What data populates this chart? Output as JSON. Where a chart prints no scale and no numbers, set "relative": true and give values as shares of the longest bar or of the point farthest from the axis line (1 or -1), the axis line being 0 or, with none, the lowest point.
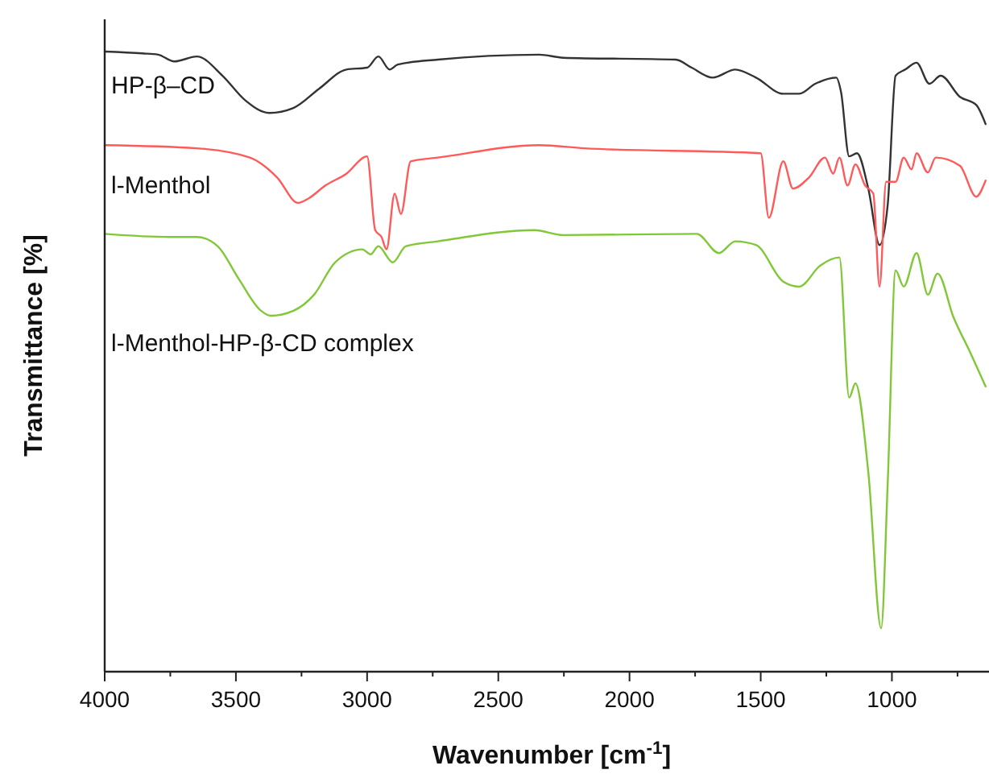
{
  "chart_data": {
    "type": "line",
    "xlabel": "Wavenumber [cm$^{-1}$]",
    "ylabel": "Transmittance [%]",
    "relative": true,
    "xlim": [
      4000,
      630
    ],
    "xticks": [
      4000,
      {
        "value": 3750,
        "label": null
      },
      3500,
      {
        "value": 3250,
        "label": null
      },
      3000,
      {
        "value": 2750,
        "label": null
      },
      2500,
      {
        "value": 2250,
        "label": null
      },
      2000,
      {
        "value": 1750,
        "label": null
      },
      1500,
      {
        "value": 1250,
        "label": null
      },
      1000,
      {
        "value": 750,
        "label": null
      }
    ],
    "series": [
      {
        "name": "HP-β–CD",
        "color": "#333333",
        "x": [
          4000,
          3857,
          3796,
          3735,
          3649,
          3551,
          3466,
          3373,
          3281,
          3183,
          3079,
          3000,
          2957,
          2914,
          2883,
          2730,
          2344,
          2253,
          1824,
          1763,
          1683,
          1597,
          1518,
          1414,
          1353,
          1292,
          1212,
          1194,
          1163,
          1133,
          1090,
          1047,
          1016,
          986,
          949,
          906,
          857,
          814,
          741,
          679,
          643
        ],
        "values": [
          1.0,
          0.997,
          0.995,
          0.984,
          0.992,
          0.961,
          0.922,
          0.901,
          0.909,
          0.94,
          0.971,
          0.974,
          0.992,
          0.971,
          0.979,
          0.987,
          0.995,
          0.99,
          0.987,
          0.974,
          0.958,
          0.971,
          0.958,
          0.932,
          0.932,
          0.948,
          0.958,
          0.935,
          0.831,
          0.836,
          0.779,
          0.688,
          0.753,
          0.961,
          0.971,
          0.982,
          0.948,
          0.961,
          0.927,
          0.914,
          0.883
        ]
      },
      {
        "name": "l-Menthol",
        "color": "#ff5a5a",
        "x": [
          4000,
          3649,
          3447,
          3343,
          3263,
          3220,
          3159,
          3079,
          3000,
          2969,
          2945,
          2926,
          2895,
          2871,
          2834,
          2730,
          2344,
          2172,
          1500,
          1469,
          1414,
          1377,
          1316,
          1255,
          1224,
          1200,
          1169,
          1139,
          1102,
          1071,
          1047,
          1022,
          986,
          955,
          925,
          906,
          863,
          833,
          741,
          679,
          643
        ],
        "values": [
          0.849,
          0.844,
          0.829,
          0.797,
          0.756,
          0.764,
          0.784,
          0.803,
          0.831,
          0.712,
          0.701,
          0.681,
          0.771,
          0.738,
          0.823,
          0.829,
          0.849,
          0.844,
          0.836,
          0.732,
          0.823,
          0.779,
          0.797,
          0.829,
          0.803,
          0.829,
          0.784,
          0.818,
          0.784,
          0.771,
          0.621,
          0.79,
          0.79,
          0.829,
          0.81,
          0.836,
          0.805,
          0.829,
          0.816,
          0.766,
          0.792
        ]
      },
      {
        "name": "l-Menthol-HP-β-CD complex",
        "color": "#80c838",
        "x": [
          4000,
          3753,
          3649,
          3569,
          3490,
          3404,
          3367,
          3281,
          3202,
          3122,
          3018,
          2987,
          2957,
          2902,
          2853,
          2730,
          2362,
          2253,
          1744,
          1659,
          1597,
          1518,
          1414,
          1353,
          1273,
          1200,
          1163,
          1139,
          1090,
          1041,
          1016,
          986,
          955,
          906,
          863,
          826,
          765,
          704,
          643
        ],
        "values": [
          0.706,
          0.701,
          0.701,
          0.686,
          0.634,
          0.582,
          0.574,
          0.582,
          0.608,
          0.66,
          0.681,
          0.673,
          0.686,
          0.66,
          0.686,
          0.694,
          0.712,
          0.704,
          0.706,
          0.675,
          0.694,
          0.688,
          0.629,
          0.621,
          0.655,
          0.668,
          0.442,
          0.465,
          0.322,
          0.07,
          0.304,
          0.647,
          0.621,
          0.675,
          0.608,
          0.642,
          0.571,
          0.517,
          0.46
        ]
      }
    ]
  }
}
